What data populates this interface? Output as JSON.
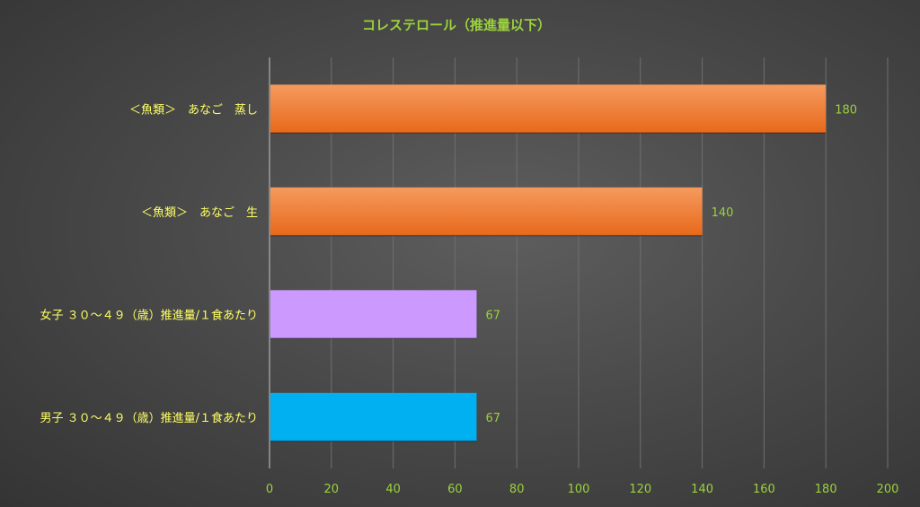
{
  "chart_data": {
    "type": "bar",
    "orientation": "horizontal",
    "title": "コレステロール（推進量以下）",
    "categories": [
      "＜魚類＞　あなご　蒸し",
      "＜魚類＞　あなご　生",
      "女子 ３０〜４９（歳）推進量/１食あたり",
      "男子 ３０〜４９（歳）推進量/１食あたり"
    ],
    "values": [
      180,
      140,
      67,
      67
    ],
    "bar_colors": [
      "#ed7123",
      "#ed7123",
      "#cc99ff",
      "#00b0f0"
    ],
    "xlim": [
      0,
      200
    ],
    "x_ticks": [
      "0",
      "20",
      "40",
      "60",
      "80",
      "100",
      "120",
      "140",
      "160",
      "180",
      "200"
    ],
    "data_labels": [
      "180",
      "140",
      "67",
      "67"
    ],
    "grid": true,
    "legend": "none"
  }
}
